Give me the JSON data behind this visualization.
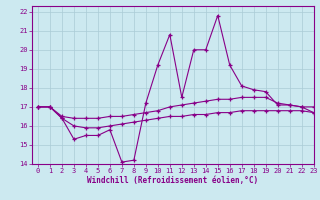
{
  "xlabel": "Windchill (Refroidissement éolien,°C)",
  "bg_color": "#cce9f0",
  "grid_color": "#aaccd6",
  "line_color": "#880088",
  "xlim": [
    -0.5,
    23
  ],
  "ylim": [
    14,
    22.3
  ],
  "yticks": [
    14,
    15,
    16,
    17,
    18,
    19,
    20,
    21,
    22
  ],
  "xticks": [
    0,
    1,
    2,
    3,
    4,
    5,
    6,
    7,
    8,
    9,
    10,
    11,
    12,
    13,
    14,
    15,
    16,
    17,
    18,
    19,
    20,
    21,
    22,
    23
  ],
  "line1_x": [
    0,
    1,
    2,
    3,
    4,
    5,
    6,
    7,
    8,
    9,
    10,
    11,
    12,
    13,
    14,
    15,
    16,
    17,
    18,
    19,
    20,
    21,
    22,
    23
  ],
  "line1_y": [
    17.0,
    17.0,
    16.4,
    15.3,
    15.5,
    15.5,
    15.8,
    14.1,
    14.2,
    17.2,
    19.2,
    20.8,
    17.5,
    20.0,
    20.0,
    21.8,
    19.2,
    18.1,
    17.9,
    17.8,
    17.1,
    17.1,
    17.0,
    16.7
  ],
  "line2_x": [
    0,
    1,
    2,
    3,
    4,
    5,
    6,
    7,
    8,
    9,
    10,
    11,
    12,
    13,
    14,
    15,
    16,
    17,
    18,
    19,
    20,
    21,
    22,
    23
  ],
  "line2_y": [
    17.0,
    17.0,
    16.5,
    16.4,
    16.4,
    16.4,
    16.5,
    16.5,
    16.6,
    16.7,
    16.8,
    17.0,
    17.1,
    17.2,
    17.3,
    17.4,
    17.4,
    17.5,
    17.5,
    17.5,
    17.2,
    17.1,
    17.0,
    17.0
  ],
  "line3_x": [
    0,
    1,
    2,
    3,
    4,
    5,
    6,
    7,
    8,
    9,
    10,
    11,
    12,
    13,
    14,
    15,
    16,
    17,
    18,
    19,
    20,
    21,
    22,
    23
  ],
  "line3_y": [
    17.0,
    17.0,
    16.4,
    16.0,
    15.9,
    15.9,
    16.0,
    16.1,
    16.2,
    16.3,
    16.4,
    16.5,
    16.5,
    16.6,
    16.6,
    16.7,
    16.7,
    16.8,
    16.8,
    16.8,
    16.8,
    16.8,
    16.8,
    16.7
  ]
}
